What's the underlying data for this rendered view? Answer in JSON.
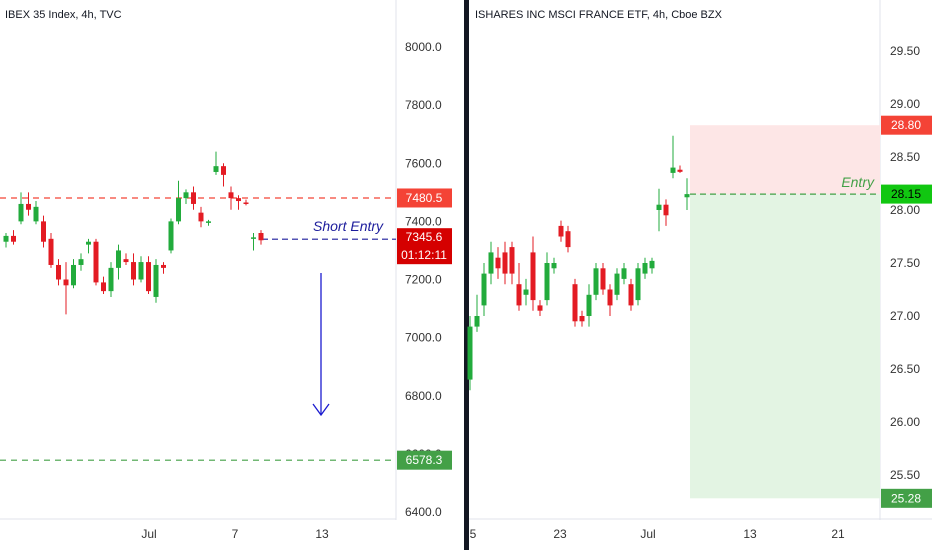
{
  "colors": {
    "up": "#22ab3c",
    "down": "#e31b23",
    "stop": "#f44336",
    "target": "#43a047",
    "entry_short": "#1c1c9c",
    "price_badge": "#d50000",
    "entry_badge": "#11c711",
    "risk_zone": "#fde6e6",
    "reward_zone": "#e3f4e3",
    "axis_text": "#333333",
    "divider": "#131722"
  },
  "left_chart": {
    "title": "IBEX 35 Index, 4h, TVC",
    "y_ticks": [
      "8000.0",
      "7800.0",
      "7600.0",
      "7400.0",
      "7200.0",
      "7000.0",
      "6800.0",
      "6600.0",
      "6400.0"
    ],
    "x_ticks": [
      "Jul",
      "7",
      "13"
    ],
    "labels": {
      "stop_price": "7480.5",
      "current_price": "7345.6",
      "countdown": "01:12:11",
      "target_price": "6578.3",
      "short_entry": "Short Entry"
    },
    "arrow_icon": "down-arrow-icon",
    "chart_data": {
      "type": "candlestick",
      "title": "IBEX 35 Index, 4h, TVC",
      "ylim": [
        6400,
        8100
      ],
      "levels": {
        "stop": 7480.5,
        "entry": 7345.6,
        "target": 6578.3
      },
      "candles": [
        {
          "o": 7330,
          "h": 7360,
          "l": 7310,
          "c": 7350
        },
        {
          "o": 7350,
          "h": 7370,
          "l": 7320,
          "c": 7330
        },
        {
          "o": 7400,
          "h": 7500,
          "l": 7390,
          "c": 7460
        },
        {
          "o": 7460,
          "h": 7500,
          "l": 7420,
          "c": 7440
        },
        {
          "o": 7400,
          "h": 7470,
          "l": 7390,
          "c": 7450
        },
        {
          "o": 7400,
          "h": 7420,
          "l": 7310,
          "c": 7330
        },
        {
          "o": 7340,
          "h": 7360,
          "l": 7240,
          "c": 7250
        },
        {
          "o": 7250,
          "h": 7270,
          "l": 7180,
          "c": 7200
        },
        {
          "o": 7200,
          "h": 7260,
          "l": 7080,
          "c": 7180
        },
        {
          "o": 7180,
          "h": 7270,
          "l": 7170,
          "c": 7250
        },
        {
          "o": 7250,
          "h": 7290,
          "l": 7230,
          "c": 7270
        },
        {
          "o": 7320,
          "h": 7340,
          "l": 7290,
          "c": 7330
        },
        {
          "o": 7330,
          "h": 7340,
          "l": 7180,
          "c": 7190
        },
        {
          "o": 7190,
          "h": 7210,
          "l": 7150,
          "c": 7160
        },
        {
          "o": 7160,
          "h": 7260,
          "l": 7140,
          "c": 7240
        },
        {
          "o": 7240,
          "h": 7320,
          "l": 7200,
          "c": 7300
        },
        {
          "o": 7270,
          "h": 7290,
          "l": 7250,
          "c": 7260
        },
        {
          "o": 7260,
          "h": 7290,
          "l": 7180,
          "c": 7200
        },
        {
          "o": 7200,
          "h": 7280,
          "l": 7190,
          "c": 7260
        },
        {
          "o": 7260,
          "h": 7280,
          "l": 7150,
          "c": 7160
        },
        {
          "o": 7140,
          "h": 7270,
          "l": 7120,
          "c": 7250
        },
        {
          "o": 7250,
          "h": 7260,
          "l": 7220,
          "c": 7240
        },
        {
          "o": 7300,
          "h": 7410,
          "l": 7290,
          "c": 7400
        },
        {
          "o": 7400,
          "h": 7540,
          "l": 7390,
          "c": 7480
        },
        {
          "o": 7480,
          "h": 7510,
          "l": 7460,
          "c": 7500
        },
        {
          "o": 7500,
          "h": 7520,
          "l": 7440,
          "c": 7460
        },
        {
          "o": 7430,
          "h": 7450,
          "l": 7380,
          "c": 7400
        },
        {
          "o": 7395,
          "h": 7405,
          "l": 7385,
          "c": 7400
        },
        {
          "o": 7570,
          "h": 7640,
          "l": 7560,
          "c": 7590
        },
        {
          "o": 7590,
          "h": 7600,
          "l": 7520,
          "c": 7560
        },
        {
          "o": 7500,
          "h": 7520,
          "l": 7440,
          "c": 7480
        },
        {
          "o": 7480,
          "h": 7490,
          "l": 7440,
          "c": 7470
        },
        {
          "o": 7465,
          "h": 7475,
          "l": 7455,
          "c": 7460
        },
        {
          "o": 7340,
          "h": 7360,
          "l": 7300,
          "c": 7345
        },
        {
          "o": 7360,
          "h": 7370,
          "l": 7320,
          "c": 7335
        }
      ]
    }
  },
  "right_chart": {
    "title": "ISHARES INC MSCI FRANCE ETF, 4h, Cboe BZX",
    "y_ticks": [
      "29.50",
      "29.00",
      "28.50",
      "28.00",
      "27.50",
      "27.00",
      "26.50",
      "26.00",
      "25.50"
    ],
    "x_ticks": [
      "5",
      "23",
      "Jul",
      "13",
      "21"
    ],
    "labels": {
      "stop_price": "28.80",
      "entry_price": "28.15",
      "target_price": "25.28",
      "entry": "Entry"
    },
    "chart_data": {
      "type": "candlestick",
      "title": "ISHARES INC MSCI FRANCE ETF, 4h, Cboe BZX",
      "ylim": [
        25.2,
        29.9
      ],
      "levels": {
        "stop": 28.8,
        "entry": 28.15,
        "target": 25.28
      },
      "candles": [
        {
          "o": 26.4,
          "h": 27.0,
          "l": 26.3,
          "c": 26.9
        },
        {
          "o": 26.9,
          "h": 27.2,
          "l": 26.85,
          "c": 27.0
        },
        {
          "o": 27.1,
          "h": 27.5,
          "l": 27.0,
          "c": 27.4
        },
        {
          "o": 27.4,
          "h": 27.7,
          "l": 27.3,
          "c": 27.6
        },
        {
          "o": 27.55,
          "h": 27.65,
          "l": 27.35,
          "c": 27.45
        },
        {
          "o": 27.6,
          "h": 27.7,
          "l": 27.3,
          "c": 27.4
        },
        {
          "o": 27.65,
          "h": 27.7,
          "l": 27.3,
          "c": 27.4
        },
        {
          "o": 27.3,
          "h": 27.5,
          "l": 27.05,
          "c": 27.1
        },
        {
          "o": 27.2,
          "h": 27.35,
          "l": 27.1,
          "c": 27.25
        },
        {
          "o": 27.6,
          "h": 27.75,
          "l": 27.05,
          "c": 27.15
        },
        {
          "o": 27.1,
          "h": 27.15,
          "l": 27.0,
          "c": 27.05
        },
        {
          "o": 27.15,
          "h": 27.6,
          "l": 27.1,
          "c": 27.5
        },
        {
          "o": 27.45,
          "h": 27.55,
          "l": 27.4,
          "c": 27.5
        },
        {
          "o": 27.85,
          "h": 27.9,
          "l": 27.7,
          "c": 27.75
        },
        {
          "o": 27.8,
          "h": 27.85,
          "l": 27.6,
          "c": 27.65
        },
        {
          "o": 27.3,
          "h": 27.35,
          "l": 26.9,
          "c": 26.95
        },
        {
          "o": 27.0,
          "h": 27.05,
          "l": 26.9,
          "c": 26.95
        },
        {
          "o": 27.0,
          "h": 27.3,
          "l": 26.9,
          "c": 27.2
        },
        {
          "o": 27.2,
          "h": 27.5,
          "l": 27.15,
          "c": 27.45
        },
        {
          "o": 27.45,
          "h": 27.5,
          "l": 27.2,
          "c": 27.25
        },
        {
          "o": 27.25,
          "h": 27.3,
          "l": 27.0,
          "c": 27.1
        },
        {
          "o": 27.2,
          "h": 27.45,
          "l": 27.15,
          "c": 27.4
        },
        {
          "o": 27.35,
          "h": 27.5,
          "l": 27.3,
          "c": 27.45
        },
        {
          "o": 27.3,
          "h": 27.35,
          "l": 27.05,
          "c": 27.1
        },
        {
          "o": 27.15,
          "h": 27.5,
          "l": 27.1,
          "c": 27.45
        },
        {
          "o": 27.4,
          "h": 27.55,
          "l": 27.35,
          "c": 27.5
        },
        {
          "o": 27.45,
          "h": 27.55,
          "l": 27.4,
          "c": 27.52
        },
        {
          "o": 28.0,
          "h": 28.2,
          "l": 27.8,
          "c": 28.05
        },
        {
          "o": 28.05,
          "h": 28.1,
          "l": 27.85,
          "c": 27.95
        },
        {
          "o": 28.35,
          "h": 28.7,
          "l": 28.3,
          "c": 28.4
        },
        {
          "o": 28.38,
          "h": 28.42,
          "l": 28.35,
          "c": 28.36
        },
        {
          "o": 28.12,
          "h": 28.3,
          "l": 28.0,
          "c": 28.15
        }
      ]
    }
  }
}
